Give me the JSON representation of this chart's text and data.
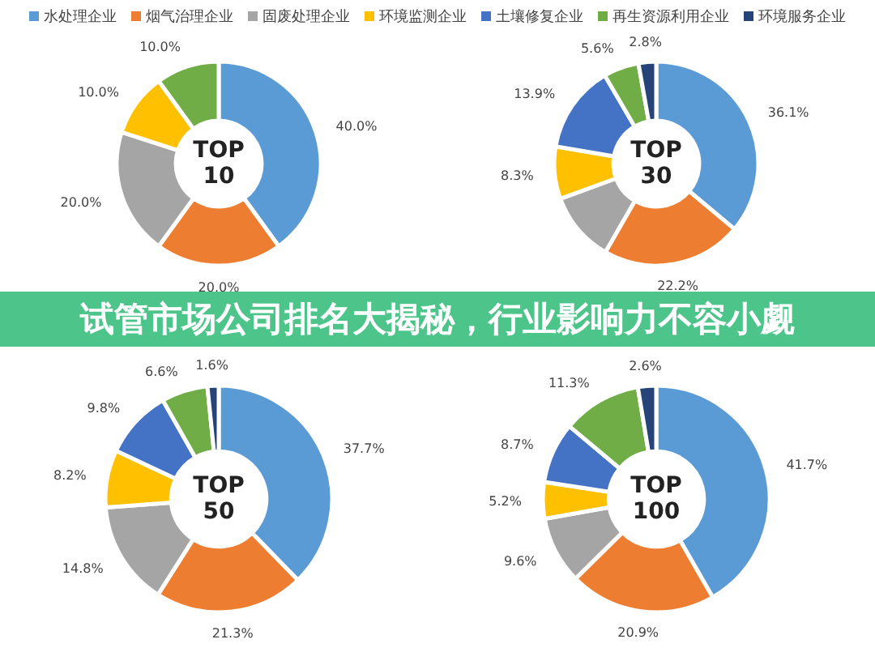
{
  "chart_data": [
    {
      "type": "donut",
      "title": "TOP 10",
      "legend": "top",
      "annotations": [
        "试管市场公司排名大揭秘，行业影响力不容小觑"
      ],
      "categories": [
        "水处理企业",
        "烟气治理企业",
        "固废处理企业",
        "环境监测企业",
        "土壤修复企业",
        "再生资源利用企业",
        "环境服务企业"
      ],
      "values": [
        40.0,
        20.0,
        20.0,
        10.0,
        0,
        10.0,
        0
      ],
      "value_labels": [
        "40.0%",
        "20.0%",
        "20.0%",
        "10.0%",
        null,
        "10.0%",
        null
      ],
      "colors": [
        "#5b9bd5",
        "#ed7d31",
        "#a5a5a5",
        "#ffc000",
        "#4472c4",
        "#70ad47",
        "#264478"
      ]
    },
    {
      "type": "donut",
      "title": "TOP 30",
      "categories": [
        null,
        null,
        null,
        null,
        null,
        null,
        null
      ],
      "values": [
        36.1,
        22.2,
        11.1,
        8.3,
        13.9,
        5.6,
        2.8
      ],
      "value_labels": [
        "36.1%",
        "22.2%",
        null,
        "8.3%",
        "13.9%",
        "5.6%",
        "2.8%"
      ],
      "colors": [
        "#5b9bd5",
        "#ed7d31",
        "#a5a5a5",
        "#ffc000",
        "#4472c4",
        "#70ad47",
        "#264478"
      ]
    },
    {
      "type": "donut",
      "title": "TOP 50",
      "categories": [
        null,
        null,
        null,
        null,
        null,
        null,
        null
      ],
      "values": [
        37.7,
        21.3,
        14.8,
        8.2,
        9.8,
        6.6,
        1.6
      ],
      "value_labels": [
        "37.7%",
        "21.3%",
        "14.8%",
        "8.2%",
        "9.8%",
        "6.6%",
        "1.6%"
      ],
      "colors": [
        "#5b9bd5",
        "#ed7d31",
        "#a5a5a5",
        "#ffc000",
        "#4472c4",
        "#70ad47",
        "#264478"
      ]
    },
    {
      "type": "donut",
      "title": "TOP 100",
      "categories": [
        null,
        null,
        null,
        null,
        null,
        null,
        null
      ],
      "values": [
        41.7,
        20.9,
        9.6,
        5.2,
        8.7,
        11.3,
        2.6
      ],
      "value_labels": [
        "41.7%",
        "20.9%",
        "9.6%",
        "5.2%",
        "8.7%",
        "11.3%",
        "2.6%"
      ],
      "colors": [
        "#5b9bd5",
        "#ed7d31",
        "#a5a5a5",
        "#ffc000",
        "#4472c4",
        "#70ad47",
        "#264478"
      ]
    }
  ]
}
